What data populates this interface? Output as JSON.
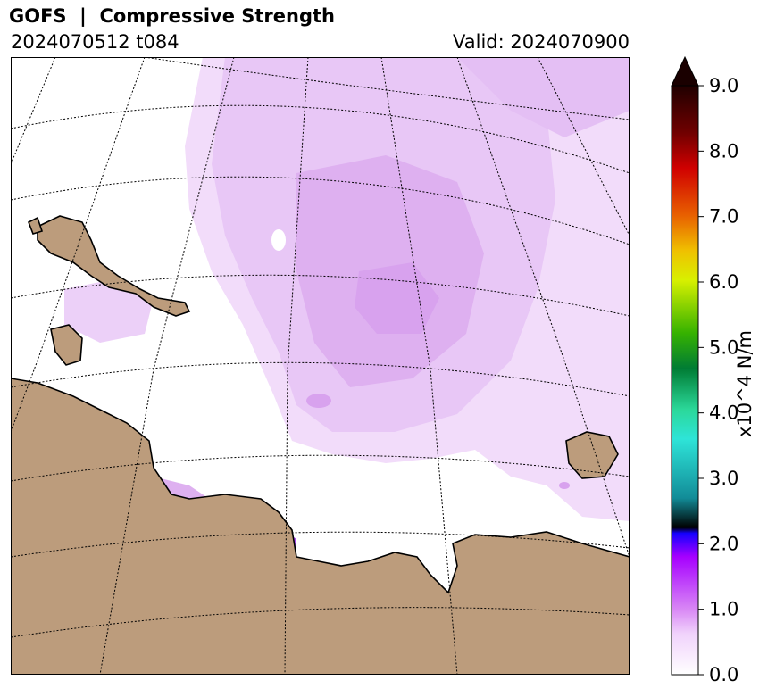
{
  "header": {
    "title": "GOFS  |  Compressive Strength",
    "run_label": "2024070512 t084",
    "valid_label": "Valid: 2024070900"
  },
  "colorbar": {
    "units_label": "x10^4 N/m",
    "ticks": [
      "0.0",
      "1.0",
      "2.0",
      "3.0",
      "4.0",
      "5.0",
      "6.0",
      "7.0",
      "8.0",
      "9.0"
    ],
    "range": [
      0.0,
      9.0
    ],
    "extend": "max",
    "colors": {
      "land": "#bc9c7c",
      "ice_light": "#f2dcfa",
      "ice_mid": "#e4bff4",
      "ice_high": "#d8a2ee",
      "ice_peak": "#a94cf0",
      "extend_arrow": "#1a0000"
    }
  }
}
